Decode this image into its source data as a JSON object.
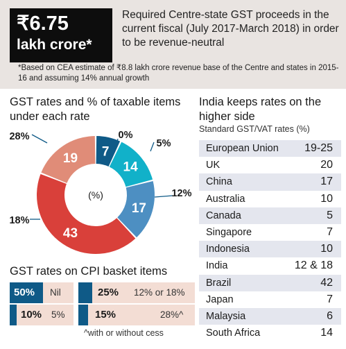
{
  "header": {
    "amount_value": "₹6.75",
    "amount_unit": "lakh crore*",
    "description": "Required Centre-state GST proceeds in the current fiscal (July 2017-March 2018) in order to be revenue-neutral",
    "footnote": "*Based on CEA estimate of ₹8.8 lakh crore revenue base of the Centre and states in 2015-16 and assuming 14% annual growth"
  },
  "chart_data": [
    {
      "type": "pie",
      "title": "GST rates and % of taxable items under each rate",
      "center_label": "(%)",
      "categories": [
        "0%",
        "5%",
        "12%",
        "18%",
        "28%"
      ],
      "values": [
        7,
        14,
        17,
        43,
        19
      ],
      "colors": [
        "#0f5a87",
        "#11b1c9",
        "#4d8fc2",
        "#d9403a",
        "#e08c78"
      ],
      "donut": true
    },
    {
      "type": "table",
      "title": "India keeps rates on the higher side",
      "subtitle": "Standard GST/VAT rates (%)",
      "rows": [
        {
          "country": "European Union",
          "rate": "19-25"
        },
        {
          "country": "UK",
          "rate": "20"
        },
        {
          "country": "China",
          "rate": "17"
        },
        {
          "country": "Australia",
          "rate": "10"
        },
        {
          "country": "Canada",
          "rate": "5"
        },
        {
          "country": "Singapore",
          "rate": "7"
        },
        {
          "country": "Indonesia",
          "rate": "10"
        },
        {
          "country": "India",
          "rate": "12 & 18"
        },
        {
          "country": "Brazil",
          "rate": "42"
        },
        {
          "country": "Japan",
          "rate": "7"
        },
        {
          "country": "Malaysia",
          "rate": "6"
        },
        {
          "country": "South Africa",
          "rate": "14"
        }
      ]
    }
  ],
  "cpi": {
    "title": "GST rates on CPI basket items",
    "items": [
      {
        "pct": "50%",
        "label": "Nil"
      },
      {
        "pct": "25%",
        "label": "12% or 18%"
      },
      {
        "pct": "10%",
        "label": "5%"
      },
      {
        "pct": "15%",
        "label": "28%^"
      }
    ],
    "footnote": "^with or without cess"
  },
  "colors": {
    "accent_blue": "#0f5a87",
    "row_peach": "#f3ddd4",
    "header_bg": "#e9e4e1",
    "table_stripe": "#e4e6ee"
  }
}
